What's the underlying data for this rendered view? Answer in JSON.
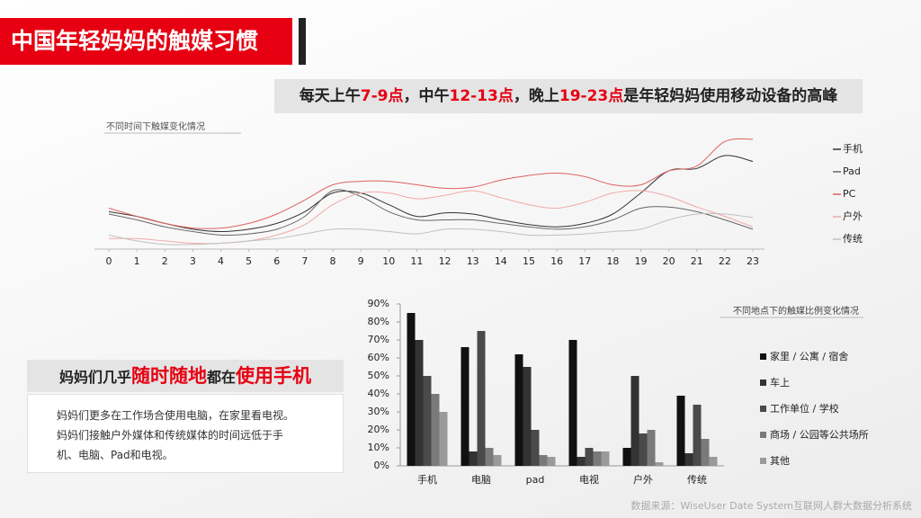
{
  "title": "中国年轻妈妈的触媒习惯",
  "headline": [
    {
      "text": "每天上午",
      "color": "#222222"
    },
    {
      "text": "7-9点",
      "color": "#e60012"
    },
    {
      "text": "，中午",
      "color": "#222222"
    },
    {
      "text": "12-13点",
      "color": "#e60012"
    },
    {
      "text": "，晚上",
      "color": "#222222"
    },
    {
      "text": "19-23点",
      "color": "#e60012"
    },
    {
      "text": "是年轻妈妈使用移动设备的高峰",
      "color": "#222222"
    }
  ],
  "callout": [
    {
      "text": "妈妈们几乎",
      "color": "#222222"
    },
    {
      "text": "随时随地",
      "color": "#e60012"
    },
    {
      "text": "都在",
      "color": "#222222"
    },
    {
      "text": "使用手机",
      "color": "#e60012"
    }
  ],
  "body": [
    "妈妈们更多在工作场合使用电脑，在家里看电视。",
    "妈妈们接触户外媒体和传统媒体的时间远低于手",
    "机、电脑、Pad和电视。"
  ],
  "source": "数据来源：WiseUser Date System互联网人群大数据分析系统",
  "chart_data": [
    {
      "type": "line",
      "title": "不同时间下触媒变化情况",
      "x": [
        0,
        1,
        2,
        3,
        4,
        5,
        6,
        7,
        8,
        9,
        10,
        11,
        12,
        13,
        14,
        15,
        16,
        17,
        18,
        19,
        20,
        21,
        22,
        23
      ],
      "xlim": [
        0,
        23
      ],
      "xticks": [
        0,
        1,
        2,
        3,
        4,
        5,
        6,
        7,
        8,
        9,
        10,
        11,
        12,
        13,
        14,
        15,
        16,
        17,
        18,
        19,
        20,
        21,
        22,
        23
      ],
      "ylim": [
        0,
        100
      ],
      "legend": "right",
      "series": [
        {
          "name": "手机",
          "color": "#333333",
          "values": [
            32,
            28,
            22,
            17,
            15,
            17,
            22,
            32,
            48,
            48,
            38,
            28,
            31,
            30,
            25,
            21,
            19,
            22,
            30,
            48,
            67,
            69,
            80,
            75
          ]
        },
        {
          "name": "Pad",
          "color": "#666666",
          "values": [
            30,
            25,
            19,
            15,
            12,
            13,
            17,
            28,
            50,
            45,
            32,
            25,
            25,
            25,
            22,
            19,
            17,
            19,
            25,
            35,
            36,
            32,
            25,
            17
          ]
        },
        {
          "name": "PC",
          "color": "#e06060",
          "values": [
            35,
            28,
            22,
            18,
            18,
            22,
            30,
            42,
            55,
            58,
            58,
            55,
            52,
            53,
            59,
            63,
            65,
            62,
            55,
            55,
            67,
            71,
            92,
            94
          ]
        },
        {
          "name": "户外",
          "color": "#f2a8a8",
          "values": [
            9,
            9,
            7,
            5,
            5,
            7,
            12,
            21,
            38,
            48,
            48,
            43,
            46,
            50,
            44,
            38,
            35,
            40,
            48,
            50,
            45,
            36,
            28,
            19
          ]
        },
        {
          "name": "传统",
          "color": "#c0c0c0",
          "values": [
            12,
            7,
            4,
            4,
            5,
            7,
            9,
            13,
            17,
            17,
            15,
            13,
            17,
            17,
            15,
            12,
            12,
            13,
            15,
            17,
            25,
            30,
            30,
            27
          ]
        }
      ]
    },
    {
      "type": "bar",
      "title": "不同地点下的触媒比例变化情况",
      "categories": [
        "手机",
        "电脑",
        "pad",
        "电视",
        "户外",
        "传统"
      ],
      "ylim": [
        0,
        90
      ],
      "yticks": [
        {
          "value": 0,
          "label": "0%"
        },
        {
          "value": 10,
          "label": "10%"
        },
        {
          "value": 20,
          "label": "20%"
        },
        {
          "value": 30,
          "label": "30%"
        },
        {
          "value": 40,
          "label": "40%"
        },
        {
          "value": 50,
          "label": "50%"
        },
        {
          "value": 60,
          "label": "60%"
        },
        {
          "value": 70,
          "label": "70%"
        },
        {
          "value": 80,
          "label": "80%"
        },
        {
          "value": 90,
          "label": "90%"
        }
      ],
      "legend": "right",
      "series": [
        {
          "name": "家里 / 公寓 / 宿舍",
          "color": "#111111",
          "values": [
            85,
            66,
            62,
            70,
            10,
            39
          ]
        },
        {
          "name": "车上",
          "color": "#333333",
          "values": [
            70,
            8,
            55,
            5,
            50,
            7
          ]
        },
        {
          "name": "工作单位 / 学校",
          "color": "#4a4a4a",
          "values": [
            50,
            75,
            20,
            10,
            18,
            34
          ]
        },
        {
          "name": "商场 / 公园等公共场所",
          "color": "#7a7a7a",
          "values": [
            40,
            10,
            6,
            8,
            20,
            15
          ]
        },
        {
          "name": "其他",
          "color": "#9a9a9a",
          "values": [
            30,
            6,
            5,
            8,
            2,
            5
          ]
        }
      ]
    }
  ]
}
